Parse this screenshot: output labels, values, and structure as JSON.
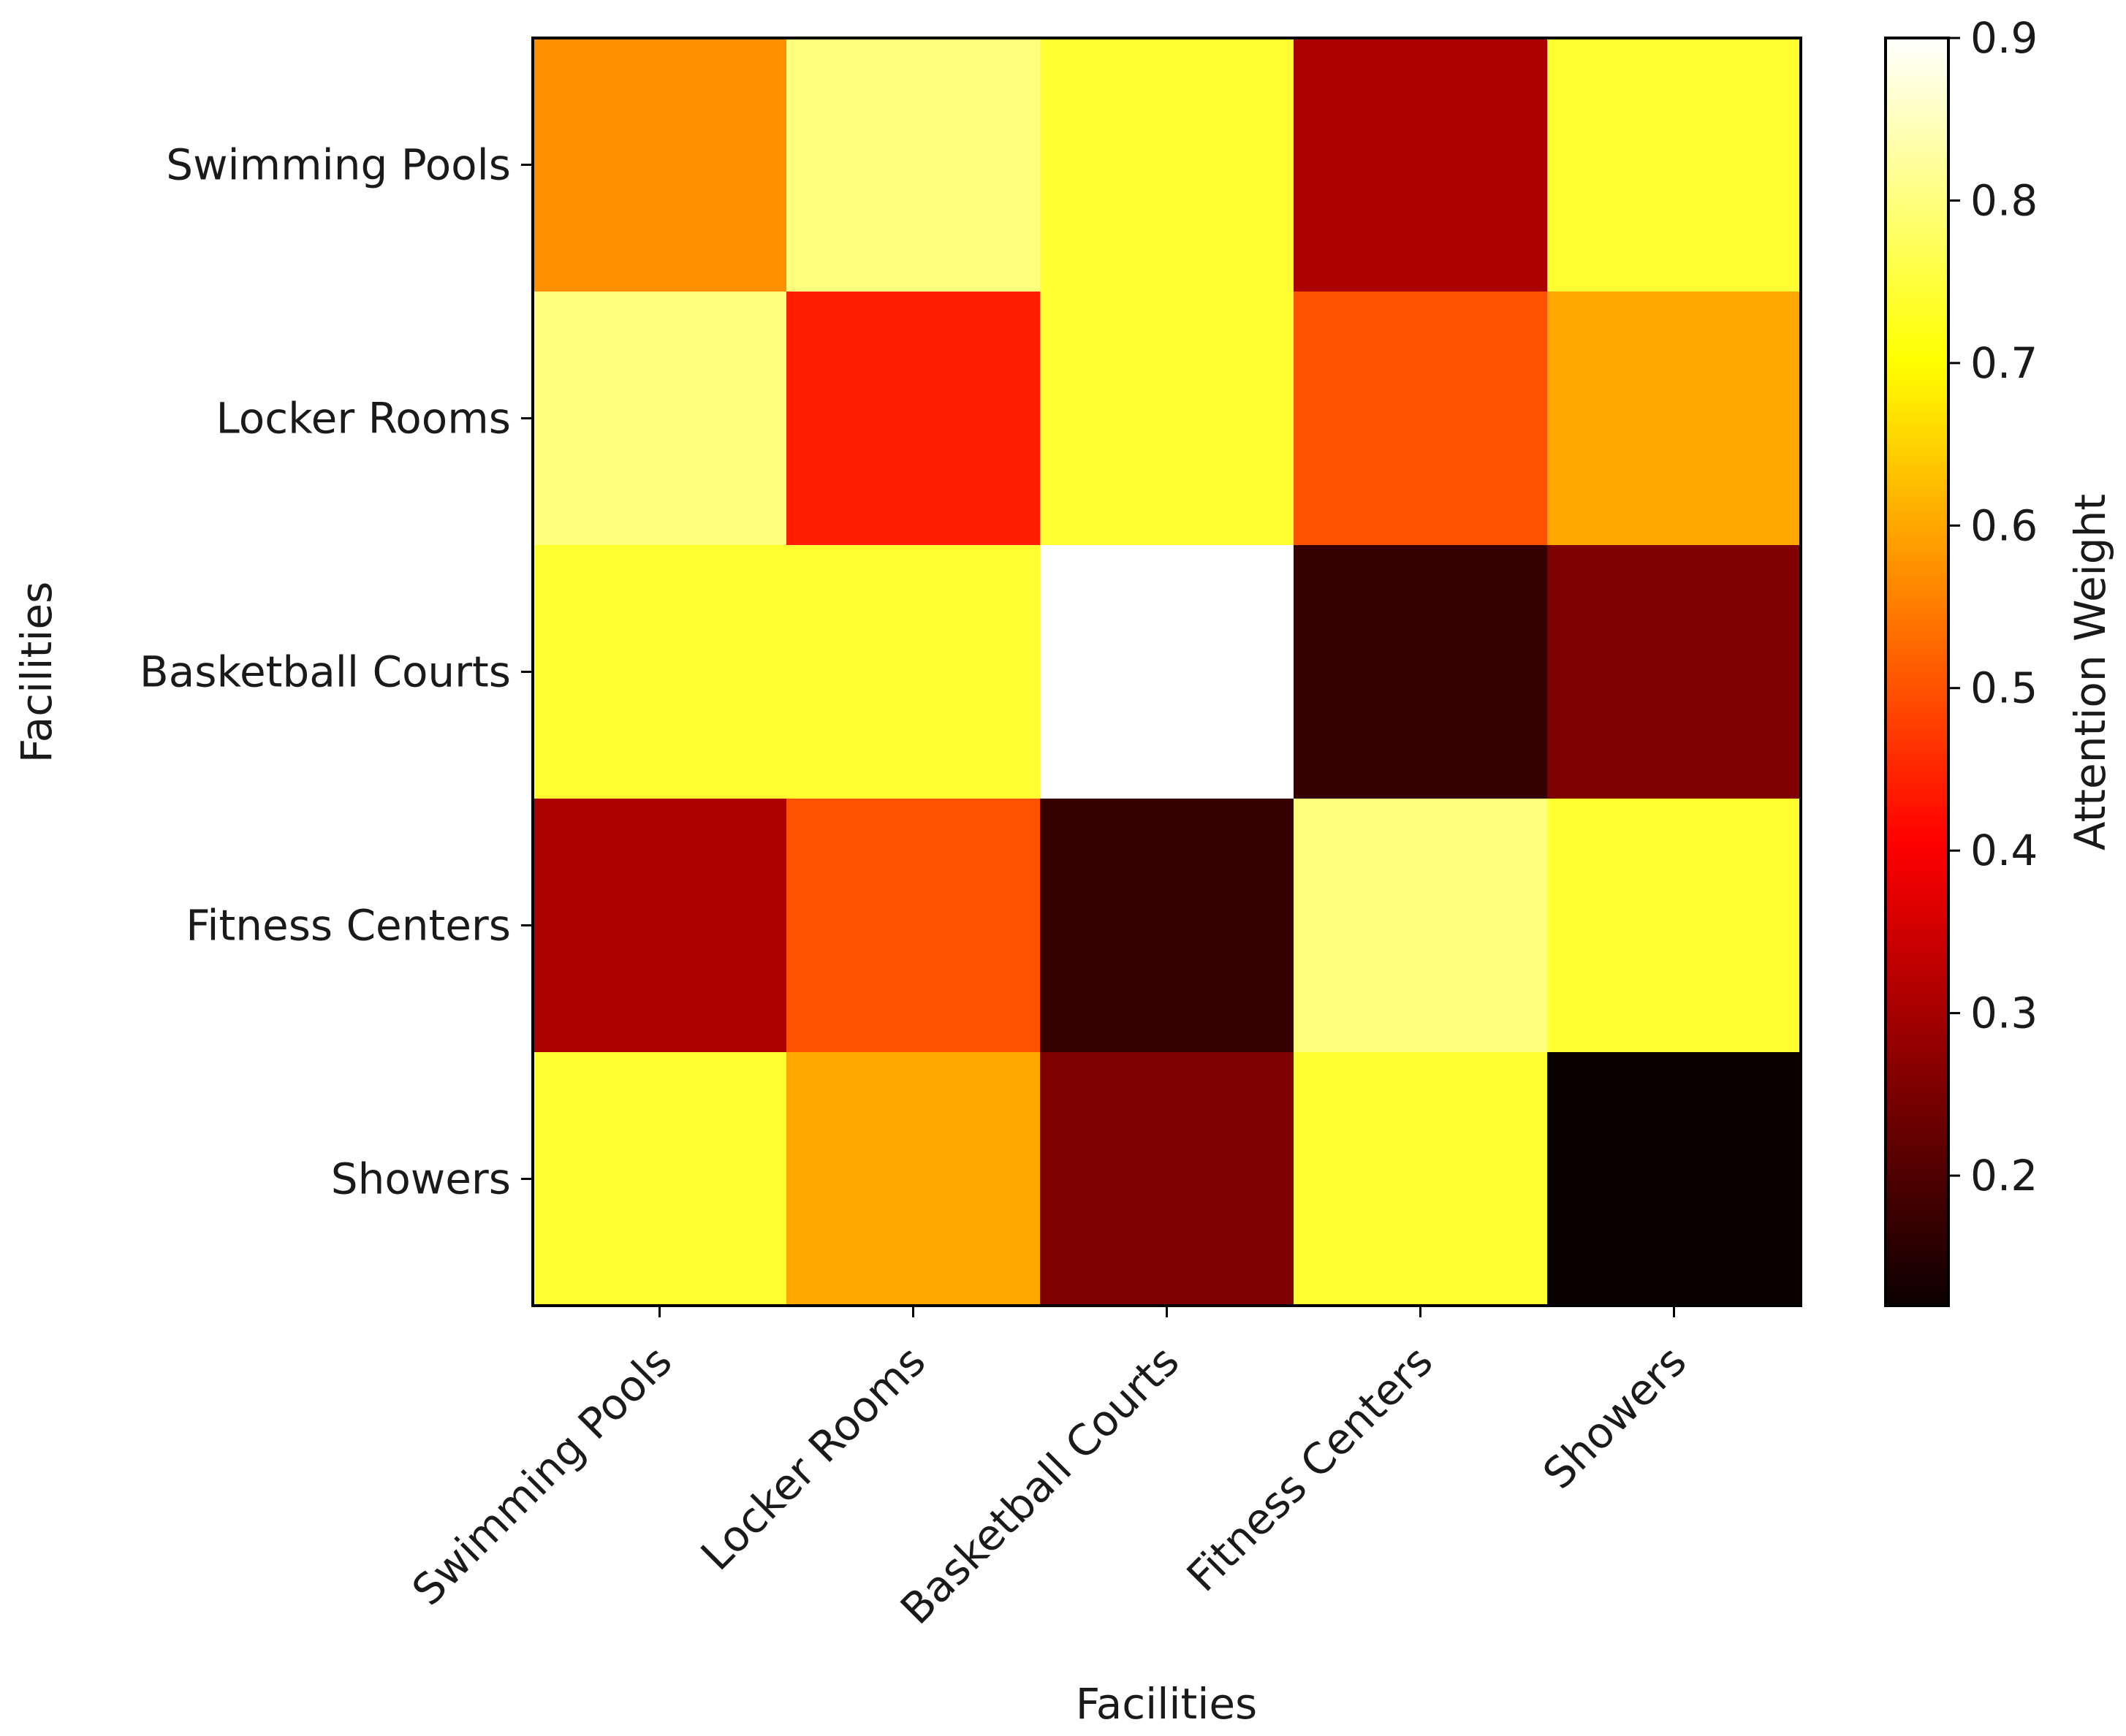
{
  "chart_data": {
    "type": "heatmap",
    "title": "",
    "xlabel": "Facilities",
    "ylabel": "Facilities",
    "x_categories": [
      "Swimming Pools",
      "Locker Rooms",
      "Basketball Courts",
      "Fitness Centers",
      "Showers"
    ],
    "y_categories": [
      "Swimming Pools",
      "Locker Rooms",
      "Basketball Courts",
      "Fitness Centers",
      "Showers"
    ],
    "values": [
      [
        0.57,
        0.8,
        0.74,
        0.3,
        0.74
      ],
      [
        0.8,
        0.44,
        0.74,
        0.5,
        0.6
      ],
      [
        0.74,
        0.74,
        0.9,
        0.17,
        0.25
      ],
      [
        0.3,
        0.5,
        0.17,
        0.8,
        0.74
      ],
      [
        0.74,
        0.6,
        0.25,
        0.74,
        0.12
      ]
    ],
    "colormap": "hot",
    "colorbar": {
      "label": "Attention Weight",
      "vmin": 0.12,
      "vmax": 0.9,
      "ticks": [
        0.2,
        0.3,
        0.4,
        0.5,
        0.6,
        0.7,
        0.8,
        0.9
      ],
      "tick_labels": [
        "0.2",
        "0.3",
        "0.4",
        "0.5",
        "0.6",
        "0.7",
        "0.8",
        "0.9"
      ]
    }
  }
}
